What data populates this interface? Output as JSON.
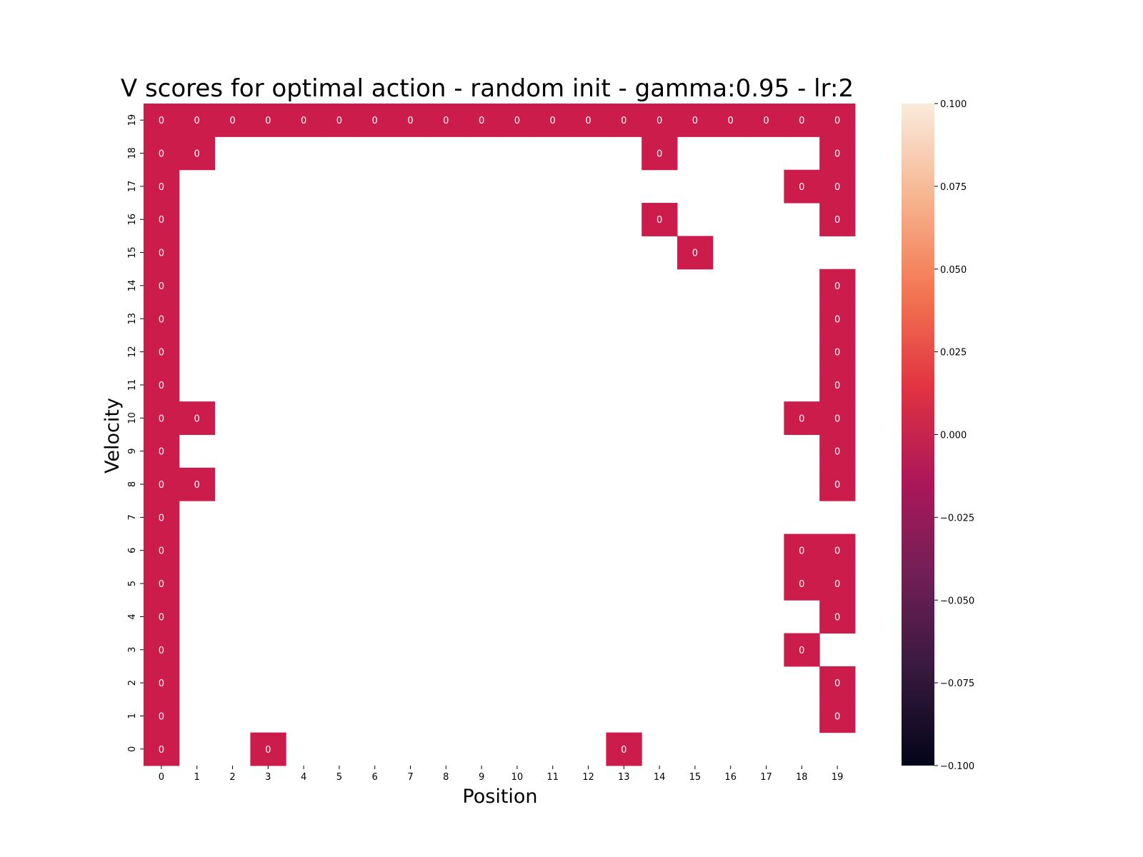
{
  "chart_data": {
    "type": "heatmap",
    "title": "V scores for optimal action - random init - gamma:0.95 - lr:2",
    "xlabel": "Position",
    "ylabel": "Velocity",
    "x_categories": [
      "0",
      "1",
      "2",
      "3",
      "4",
      "5",
      "6",
      "7",
      "8",
      "9",
      "10",
      "11",
      "12",
      "13",
      "14",
      "15",
      "16",
      "17",
      "18",
      "19"
    ],
    "y_categories": [
      "0",
      "1",
      "2",
      "3",
      "4",
      "5",
      "6",
      "7",
      "8",
      "9",
      "10",
      "11",
      "12",
      "13",
      "14",
      "15",
      "16",
      "17",
      "18",
      "19"
    ],
    "cell_label": "0",
    "cell_color": "#cc1c4c",
    "filled_cells": [
      {
        "velocity": 19,
        "positions": [
          0,
          1,
          2,
          3,
          4,
          5,
          6,
          7,
          8,
          9,
          10,
          11,
          12,
          13,
          14,
          15,
          16,
          17,
          18,
          19
        ],
        "value": 0
      },
      {
        "velocity": 18,
        "positions": [
          0,
          1,
          14,
          19
        ],
        "value": 0
      },
      {
        "velocity": 17,
        "positions": [
          0,
          18,
          19
        ],
        "value": 0
      },
      {
        "velocity": 16,
        "positions": [
          0,
          14,
          19
        ],
        "value": 0
      },
      {
        "velocity": 15,
        "positions": [
          0,
          15
        ],
        "value": 0
      },
      {
        "velocity": 14,
        "positions": [
          0,
          19
        ],
        "value": 0
      },
      {
        "velocity": 13,
        "positions": [
          0,
          19
        ],
        "value": 0
      },
      {
        "velocity": 12,
        "positions": [
          0,
          19
        ],
        "value": 0
      },
      {
        "velocity": 11,
        "positions": [
          0,
          19
        ],
        "value": 0
      },
      {
        "velocity": 10,
        "positions": [
          0,
          1,
          18,
          19
        ],
        "value": 0
      },
      {
        "velocity": 9,
        "positions": [
          0,
          19
        ],
        "value": 0
      },
      {
        "velocity": 8,
        "positions": [
          0,
          1,
          19
        ],
        "value": 0
      },
      {
        "velocity": 7,
        "positions": [
          0
        ],
        "value": 0
      },
      {
        "velocity": 6,
        "positions": [
          0,
          18,
          19
        ],
        "value": 0
      },
      {
        "velocity": 5,
        "positions": [
          0,
          18,
          19
        ],
        "value": 0
      },
      {
        "velocity": 4,
        "positions": [
          0,
          19
        ],
        "value": 0
      },
      {
        "velocity": 3,
        "positions": [
          0,
          18
        ],
        "value": 0
      },
      {
        "velocity": 2,
        "positions": [
          0,
          19
        ],
        "value": 0
      },
      {
        "velocity": 1,
        "positions": [
          0,
          19
        ],
        "value": 0
      },
      {
        "velocity": 0,
        "positions": [
          0,
          3,
          13
        ],
        "value": 0
      }
    ],
    "colorbar": {
      "min": -0.1,
      "max": 0.1,
      "ticks": [
        "0.100",
        "0.075",
        "0.050",
        "0.025",
        "0.000",
        "−0.025",
        "−0.050",
        "−0.075",
        "−0.100"
      ],
      "colormap": "rocket",
      "gradient_colors": [
        "#03051a",
        "#36193e",
        "#701f57",
        "#ad1759",
        "#e13342",
        "#f37651",
        "#f6b48f",
        "#faebdd"
      ]
    },
    "grid": false
  }
}
